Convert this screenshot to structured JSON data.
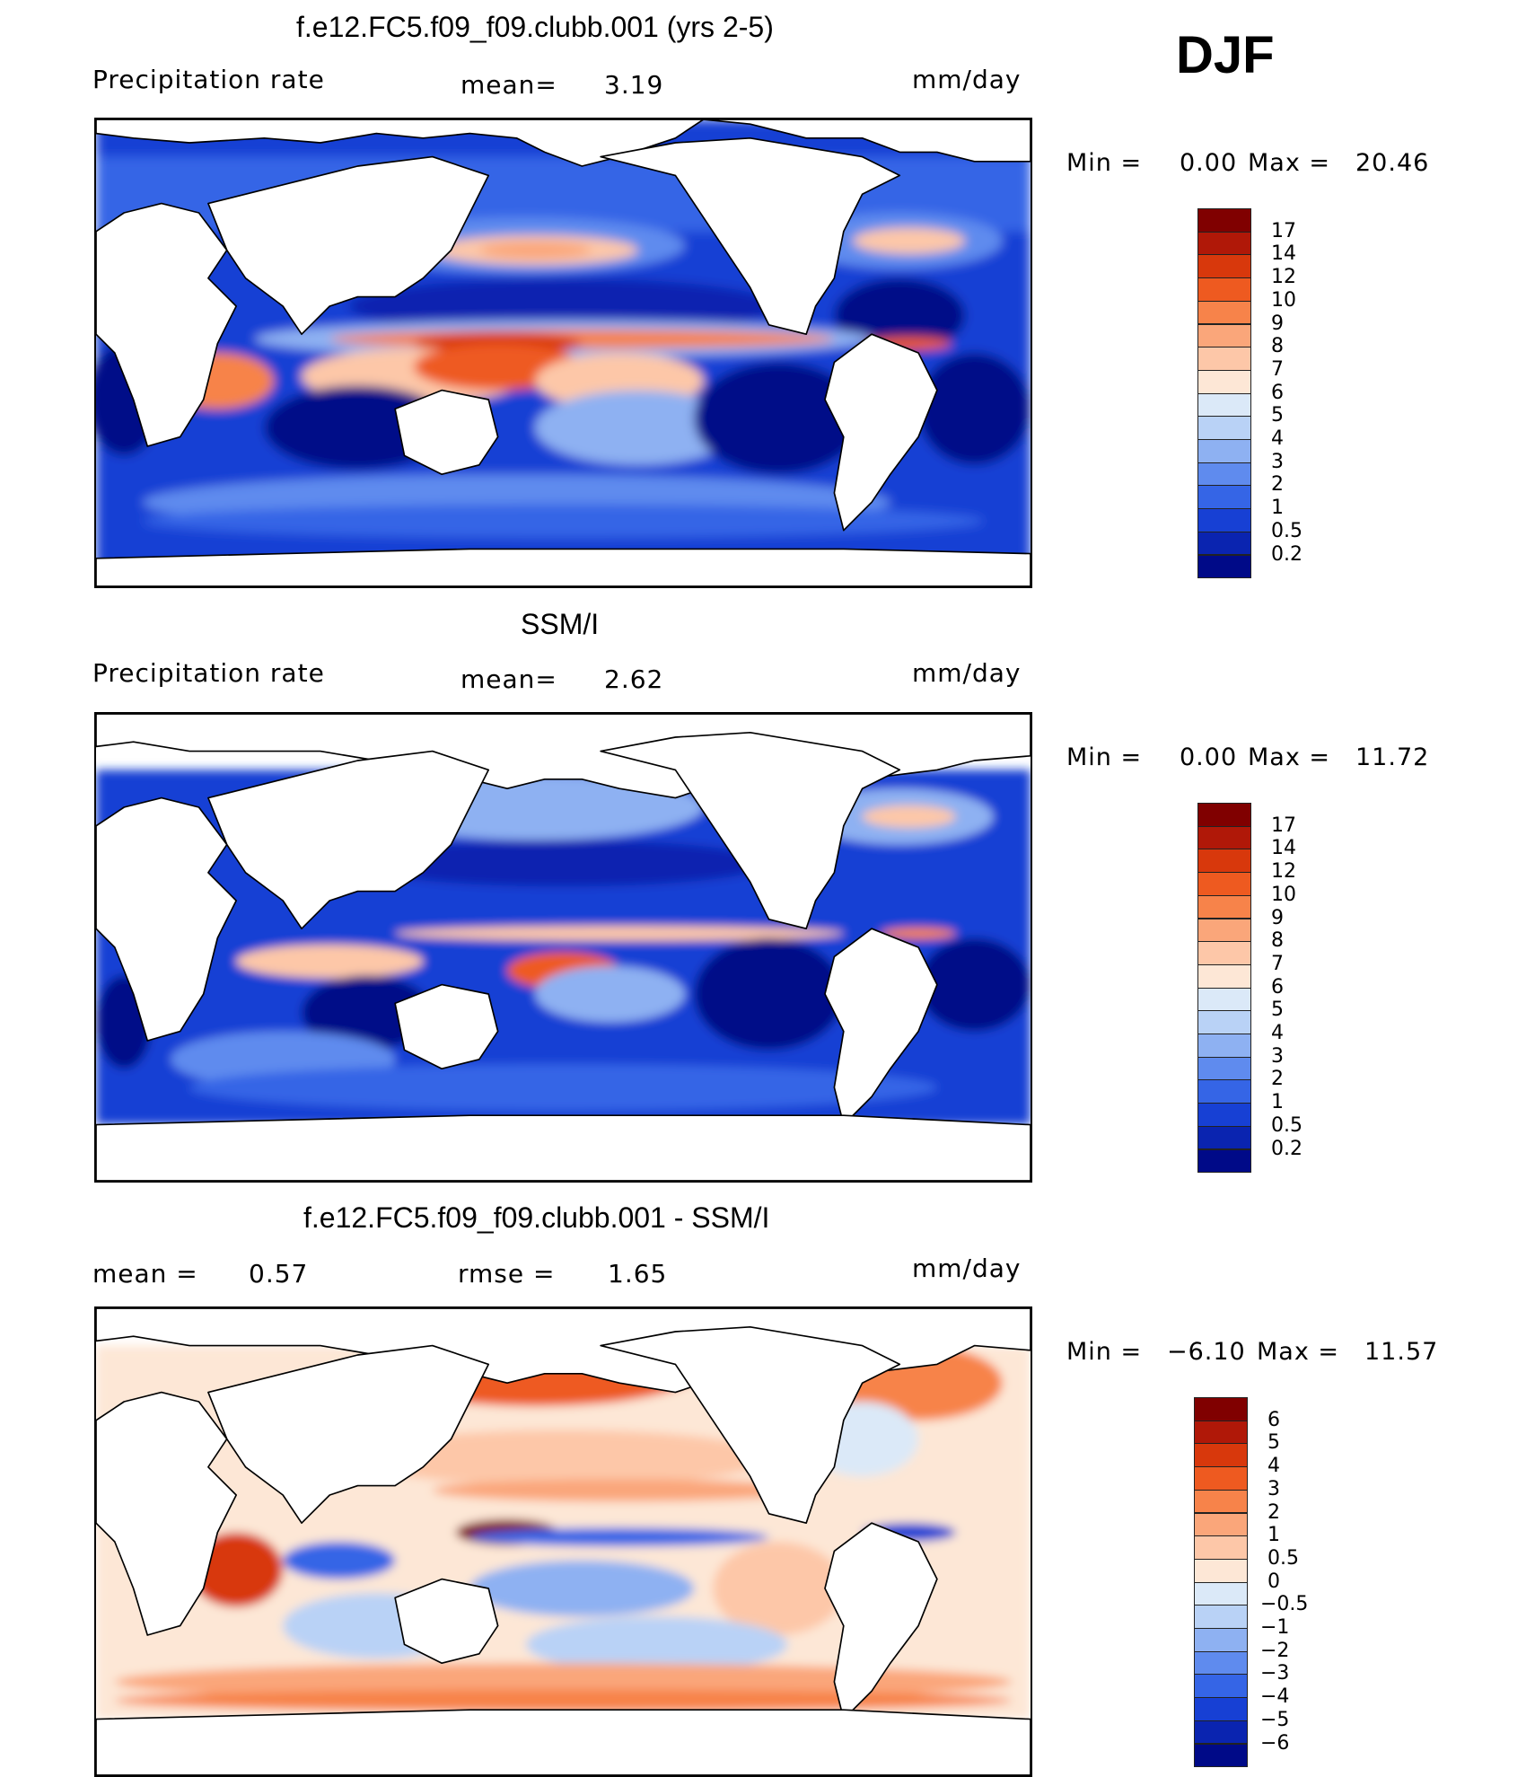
{
  "season": "DJF",
  "panels": [
    {
      "id": "model",
      "title": "f.e12.FC5.f09_f09.clubb.001 (yrs 2-5)",
      "left_label": "Precipitation rate",
      "mid_label": "mean=",
      "mid_value": "3.19",
      "unit": "mm/day",
      "min_label": "Min =",
      "min_value": "0.00",
      "max_label": "Max =",
      "max_value": "20.46",
      "field": "precip"
    },
    {
      "id": "obs",
      "title": "SSM/I",
      "left_label": "Precipitation rate",
      "mid_label": "mean=",
      "mid_value": "2.62",
      "unit": "mm/day",
      "min_label": "Min =",
      "min_value": "0.00",
      "max_label": "Max =",
      "max_value": "11.72",
      "field": "precip"
    },
    {
      "id": "diff",
      "title": "f.e12.FC5.f09_f09.clubb.001 - SSM/I",
      "left_label": "mean =",
      "left_value": "0.57",
      "mid_label": "rmse =",
      "mid_value": "1.65",
      "unit": "mm/day",
      "min_label": "Min =",
      "min_value": "−6.10",
      "max_label": "Max =",
      "max_value": "11.57",
      "field": "diff"
    }
  ],
  "colorbars": {
    "precip": {
      "ticks": [
        "17",
        "14",
        "12",
        "10",
        "9",
        "8",
        "7",
        "6",
        "5",
        "4",
        "3",
        "2",
        "1",
        "0.5",
        "0.2"
      ],
      "colors": [
        "#800000",
        "#b01808",
        "#d8380c",
        "#ee5a20",
        "#f7834a",
        "#faa67a",
        "#fdc7a8",
        "#fde7d6",
        "#dbe9f8",
        "#b9d2f6",
        "#8eb1f2",
        "#5f8bee",
        "#3565e6",
        "#1740d4",
        "#0a24b0",
        "#000a88"
      ]
    },
    "diff": {
      "ticks": [
        "6",
        "5",
        "4",
        "3",
        "2",
        "1",
        "0.5",
        "0",
        "−0.5",
        "−1",
        "−2",
        "−3",
        "−4",
        "−5",
        "−6"
      ],
      "colors": [
        "#800000",
        "#b01808",
        "#d8380c",
        "#ee5a20",
        "#f7834a",
        "#faa67a",
        "#fdc7a8",
        "#fde7d6",
        "#dbe9f8",
        "#b9d2f6",
        "#8eb1f2",
        "#5f8bee",
        "#3565e6",
        "#1740d4",
        "#0a24b0",
        "#000a88"
      ]
    }
  }
}
